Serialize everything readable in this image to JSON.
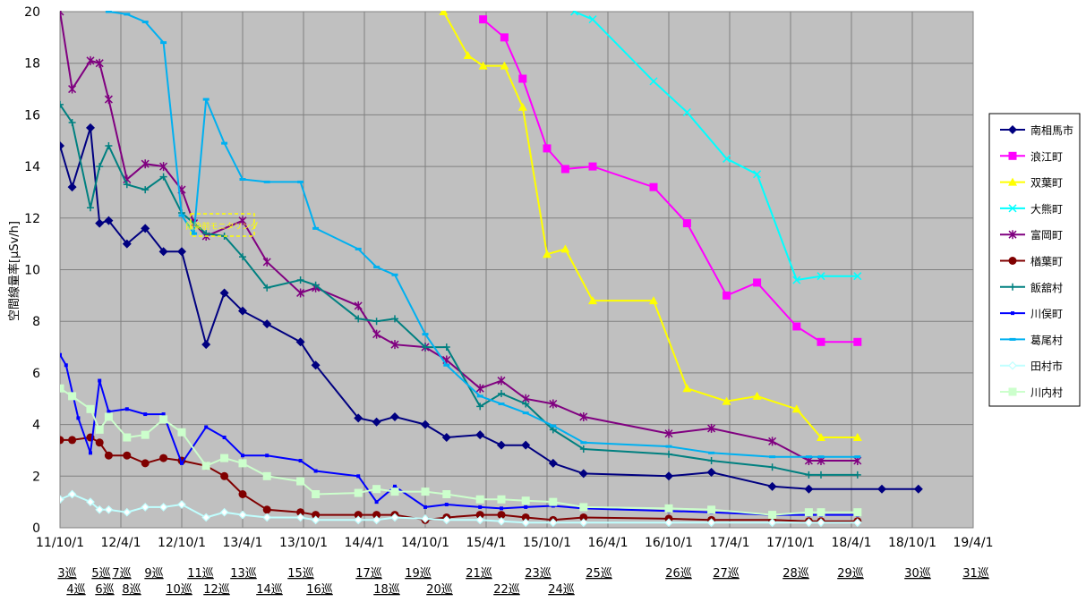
{
  "chart_data": {
    "type": "line",
    "ylabel": "空間線量率[μSv/h]",
    "xlabel": "",
    "ylim": [
      0,
      20
    ],
    "y_ticks": [
      0,
      2,
      4,
      6,
      8,
      10,
      12,
      14,
      16,
      18,
      20
    ],
    "x_tick_labels": [
      "11/10/1",
      "12/4/1",
      "12/10/1",
      "13/4/1",
      "13/10/1",
      "14/4/1",
      "14/10/1",
      "15/4/1",
      "15/10/1",
      "16/4/1",
      "16/10/1",
      "17/4/1",
      "17/10/1",
      "18/4/1",
      "18/10/1",
      "19/4/1"
    ],
    "grid": true,
    "legend_position": "right",
    "plot_background": "#c0c0c0",
    "rounds_row1": [
      "3巡",
      "5巡",
      "7巡",
      "9巡",
      "11巡",
      "13巡",
      "15巡",
      "17巡",
      "19巡",
      "21巡",
      "23巡",
      "25巡",
      "26巡",
      "27巡",
      "28巡",
      "29巡",
      "30巡",
      "31巡"
    ],
    "rounds_row2": [
      "4巡",
      "6巡",
      "8巡",
      "10巡",
      "12巡",
      "14巡",
      "16巡",
      "18巡",
      "20巡",
      "22巡",
      "24巡"
    ],
    "annotation": "除染前モニタリング",
    "series": [
      {
        "name": "南相馬市",
        "color": "#000080",
        "marker": "diamond",
        "x": [
          0.0,
          0.2,
          0.5,
          0.65,
          0.8,
          1.1,
          1.4,
          1.7,
          2.0,
          2.4,
          2.7,
          3.0,
          3.4,
          3.95,
          4.2,
          4.9,
          5.2,
          5.5,
          6.0,
          6.35,
          6.9,
          7.25,
          7.65,
          8.1,
          8.6,
          10.0,
          10.7,
          11.7,
          12.3,
          13.5,
          14.1
        ],
        "y": [
          14.8,
          13.2,
          15.5,
          11.8,
          11.9,
          11.0,
          11.6,
          10.7,
          10.7,
          7.1,
          9.1,
          8.4,
          7.9,
          7.2,
          6.3,
          4.25,
          4.1,
          4.3,
          4.0,
          3.5,
          3.6,
          3.2,
          3.2,
          2.5,
          2.1,
          2.0,
          2.15,
          1.6,
          1.5,
          1.5,
          1.5
        ]
      },
      {
        "name": "浪江町",
        "color": "#ff00ff",
        "marker": "square",
        "x": [
          6.95,
          7.3,
          7.6,
          8.0,
          8.3,
          8.75,
          9.75,
          10.3,
          10.95,
          11.45,
          12.1,
          12.5,
          13.1
        ],
        "y": [
          19.7,
          19.0,
          17.4,
          14.7,
          13.9,
          14.0,
          13.2,
          11.8,
          9.0,
          9.5,
          7.8,
          7.2,
          7.2
        ]
      },
      {
        "name": "双葉町",
        "color": "#ffff00",
        "marker": "triangle",
        "x": [
          6.3,
          6.7,
          6.95,
          7.3,
          7.6,
          8.0,
          8.3,
          8.75,
          9.75,
          10.3,
          10.95,
          11.45,
          12.1,
          12.5,
          13.1
        ],
        "y": [
          20.0,
          18.3,
          17.9,
          17.9,
          16.3,
          10.6,
          10.8,
          8.8,
          8.8,
          5.4,
          4.9,
          5.1,
          4.6,
          3.5,
          3.5
        ]
      },
      {
        "name": "大熊町",
        "color": "#00ffff",
        "marker": "x",
        "x": [
          8.45,
          8.75,
          9.75,
          10.3,
          10.95,
          11.45,
          12.1,
          12.5,
          13.1
        ],
        "y": [
          20.0,
          19.7,
          17.3,
          16.1,
          14.3,
          13.7,
          9.6,
          9.75,
          9.75
        ]
      },
      {
        "name": "富岡町",
        "color": "#800080",
        "marker": "star",
        "x": [
          0.0,
          0.2,
          0.5,
          0.65,
          0.8,
          1.1,
          1.4,
          1.7,
          2.0,
          2.2,
          2.4,
          3.0,
          3.4,
          3.95,
          4.2,
          4.9,
          5.2,
          5.5,
          6.0,
          6.35,
          6.9,
          7.25,
          7.65,
          8.1,
          8.6,
          10.0,
          10.7,
          11.7,
          12.3,
          12.5,
          13.1
        ],
        "y": [
          20.0,
          17.0,
          18.1,
          18.0,
          16.6,
          13.5,
          14.1,
          14.0,
          13.1,
          11.8,
          11.3,
          11.9,
          10.3,
          9.1,
          9.3,
          8.6,
          7.5,
          7.1,
          7.0,
          6.5,
          5.4,
          5.7,
          5.0,
          4.8,
          4.3,
          3.65,
          3.85,
          3.35,
          2.6,
          2.6,
          2.6
        ]
      },
      {
        "name": "楢葉町",
        "color": "#800000",
        "marker": "circle",
        "x": [
          0.0,
          0.2,
          0.5,
          0.65,
          0.8,
          1.1,
          1.4,
          1.7,
          2.0,
          2.4,
          2.7,
          3.0,
          3.4,
          3.95,
          4.2,
          4.9,
          5.2,
          5.5,
          6.0,
          6.35,
          6.9,
          7.25,
          7.65,
          8.1,
          8.6,
          10.0,
          10.7,
          11.7,
          12.3,
          12.5,
          13.1
        ],
        "y": [
          3.4,
          3.4,
          3.5,
          3.3,
          2.8,
          2.8,
          2.5,
          2.7,
          2.6,
          2.4,
          2.0,
          1.3,
          0.7,
          0.6,
          0.5,
          0.5,
          0.5,
          0.5,
          0.3,
          0.4,
          0.5,
          0.5,
          0.4,
          0.3,
          0.4,
          0.35,
          0.3,
          0.3,
          0.25,
          0.25,
          0.25
        ]
      },
      {
        "name": "飯舘村",
        "color": "#008080",
        "marker": "plus",
        "x": [
          0.0,
          0.2,
          0.5,
          0.65,
          0.8,
          1.1,
          1.4,
          1.7,
          2.0,
          2.4,
          2.7,
          3.0,
          3.4,
          3.95,
          4.2,
          4.9,
          5.2,
          5.5,
          6.0,
          6.35,
          6.9,
          7.25,
          7.65,
          8.1,
          8.6,
          10.0,
          10.7,
          11.7,
          12.3,
          12.5,
          13.1
        ],
        "y": [
          16.4,
          15.7,
          12.4,
          14.0,
          14.8,
          13.3,
          13.1,
          13.6,
          12.2,
          11.4,
          11.3,
          10.5,
          9.3,
          9.6,
          9.4,
          8.1,
          8.0,
          8.1,
          7.0,
          7.0,
          4.7,
          5.2,
          4.8,
          3.8,
          3.05,
          2.85,
          2.6,
          2.35,
          2.05,
          2.05,
          2.05
        ]
      },
      {
        "name": "川俣町",
        "color": "#0000ff",
        "marker": "dot",
        "x": [
          0.0,
          0.1,
          0.3,
          0.5,
          0.65,
          0.8,
          1.1,
          1.4,
          1.7,
          2.0,
          2.4,
          2.7,
          3.0,
          3.4,
          3.95,
          4.2,
          4.9,
          5.2,
          5.5,
          6.0,
          6.35,
          6.9,
          7.25,
          7.65,
          8.1,
          8.6,
          10.0,
          10.7,
          11.7,
          12.3,
          12.5,
          13.1
        ],
        "y": [
          6.7,
          6.3,
          4.25,
          2.9,
          5.7,
          4.5,
          4.6,
          4.4,
          4.4,
          2.5,
          3.9,
          3.5,
          2.8,
          2.8,
          2.6,
          2.2,
          2.0,
          1.0,
          1.6,
          0.8,
          0.9,
          0.8,
          0.75,
          0.8,
          0.85,
          0.75,
          0.65,
          0.6,
          0.5,
          0.5,
          0.5,
          0.5
        ]
      },
      {
        "name": "葛尾村",
        "color": "#00b0f0",
        "marker": "dash",
        "x": [
          0.8,
          1.1,
          1.4,
          1.7,
          2.0,
          2.2,
          2.4,
          2.7,
          3.0,
          3.4,
          3.95,
          4.2,
          4.9,
          5.2,
          5.5,
          6.0,
          6.35,
          6.9,
          7.25,
          7.65,
          8.1,
          8.6,
          10.0,
          10.7,
          11.7,
          12.3,
          12.5,
          13.1
        ],
        "y": [
          20.0,
          19.9,
          19.6,
          18.8,
          12.1,
          11.4,
          16.6,
          14.9,
          13.5,
          13.4,
          13.4,
          11.6,
          10.8,
          10.1,
          9.8,
          7.5,
          6.3,
          5.1,
          4.8,
          4.45,
          3.95,
          3.3,
          3.15,
          2.9,
          2.75,
          2.75,
          2.75,
          2.75
        ]
      },
      {
        "name": "田村市",
        "color": "#c0ffff",
        "marker": "diamond-open",
        "x": [
          0.0,
          0.2,
          0.5,
          0.65,
          0.8,
          1.1,
          1.4,
          1.7,
          2.0,
          2.4,
          2.7,
          3.0,
          3.4,
          3.95,
          4.2,
          4.9,
          5.2,
          5.5,
          6.0,
          6.35,
          6.9,
          7.25,
          7.65,
          8.1,
          8.6,
          10.0,
          10.7,
          11.7,
          12.3,
          12.5,
          13.1
        ],
        "y": [
          1.1,
          1.3,
          1.0,
          0.7,
          0.7,
          0.6,
          0.8,
          0.8,
          0.9,
          0.4,
          0.6,
          0.5,
          0.4,
          0.4,
          0.3,
          0.3,
          0.3,
          0.4,
          0.35,
          0.3,
          0.3,
          0.25,
          0.2,
          0.2,
          0.2,
          0.2,
          0.2,
          0.2,
          0.2,
          0.2,
          0.2
        ]
      },
      {
        "name": "川内村",
        "color": "#ccffcc",
        "marker": "square",
        "x": [
          0.0,
          0.2,
          0.5,
          0.65,
          0.8,
          1.1,
          1.4,
          1.7,
          2.0,
          2.4,
          2.7,
          3.0,
          3.4,
          3.95,
          4.2,
          4.9,
          5.2,
          5.5,
          6.0,
          6.35,
          6.9,
          7.25,
          7.65,
          8.1,
          8.6,
          10.0,
          10.7,
          11.7,
          12.3,
          12.5,
          13.1
        ],
        "y": [
          5.4,
          5.1,
          4.6,
          3.8,
          4.3,
          3.5,
          3.6,
          4.2,
          3.7,
          2.4,
          2.7,
          2.5,
          2.0,
          1.8,
          1.3,
          1.35,
          1.5,
          1.4,
          1.4,
          1.3,
          1.1,
          1.1,
          1.05,
          1.0,
          0.8,
          0.75,
          0.7,
          0.5,
          0.6,
          0.6,
          0.6
        ]
      }
    ]
  }
}
